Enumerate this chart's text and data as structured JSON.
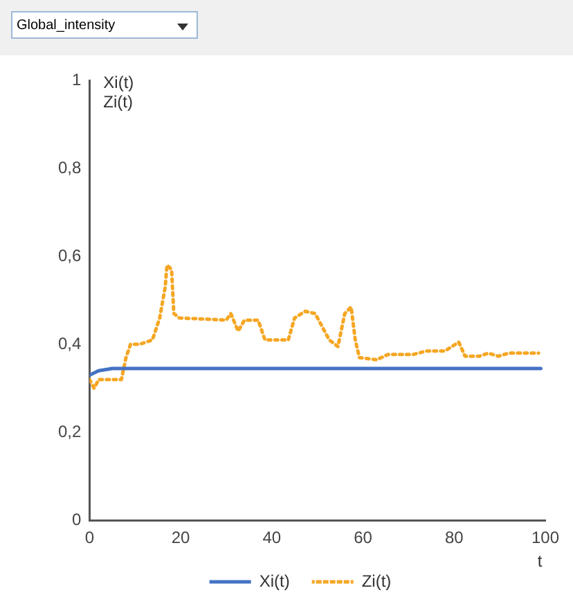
{
  "chart_data": {
    "type": "line",
    "annotations": [
      "Global_intensity"
    ],
    "xlabel": "t",
    "ylabel": "Xi(t)\nZi(t)",
    "xlim": [
      0,
      100
    ],
    "ylim": [
      0,
      1
    ],
    "xticks": [
      0,
      20,
      40,
      60,
      80,
      100
    ],
    "yticks": [
      0,
      {
        "value": 0.2,
        "label": "0,2"
      },
      {
        "value": 0.4,
        "label": "0,4"
      },
      {
        "value": 0.6,
        "label": "0,6"
      },
      {
        "value": 0.8,
        "label": "0,8"
      },
      1
    ],
    "grid": false,
    "legend": "bottom",
    "marker": "none",
    "series": [
      {
        "name": "Xi(t)",
        "color": "#4472c4",
        "line_style": "solid",
        "x": [
          0,
          2,
          5,
          99
        ],
        "values": [
          0.33,
          0.34,
          0.345,
          0.345
        ]
      },
      {
        "name": "Zi(t)",
        "color": "#f5a623",
        "line_style": "dotted",
        "x": [
          0,
          1,
          2,
          7,
          8,
          9,
          11,
          13.8,
          15.4,
          16.6,
          17,
          18,
          18.5,
          19.7,
          30,
          31,
          32.6,
          34,
          37,
          38.5,
          43.6,
          45,
          47.3,
          49.5,
          52.6,
          54.5,
          56,
          57.4,
          58.3,
          59.2,
          63,
          65.5,
          71,
          74,
          78,
          81,
          82.4,
          85.5,
          87.5,
          89.7,
          92,
          98.5
        ],
        "values": [
          0.32,
          0.3,
          0.32,
          0.32,
          0.37,
          0.4,
          0.4,
          0.41,
          0.46,
          0.53,
          0.58,
          0.57,
          0.47,
          0.46,
          0.455,
          0.47,
          0.43,
          0.455,
          0.455,
          0.41,
          0.41,
          0.46,
          0.475,
          0.47,
          0.41,
          0.395,
          0.47,
          0.485,
          0.41,
          0.37,
          0.365,
          0.377,
          0.377,
          0.385,
          0.385,
          0.405,
          0.373,
          0.373,
          0.38,
          0.373,
          0.38,
          0.38
        ]
      }
    ]
  }
}
